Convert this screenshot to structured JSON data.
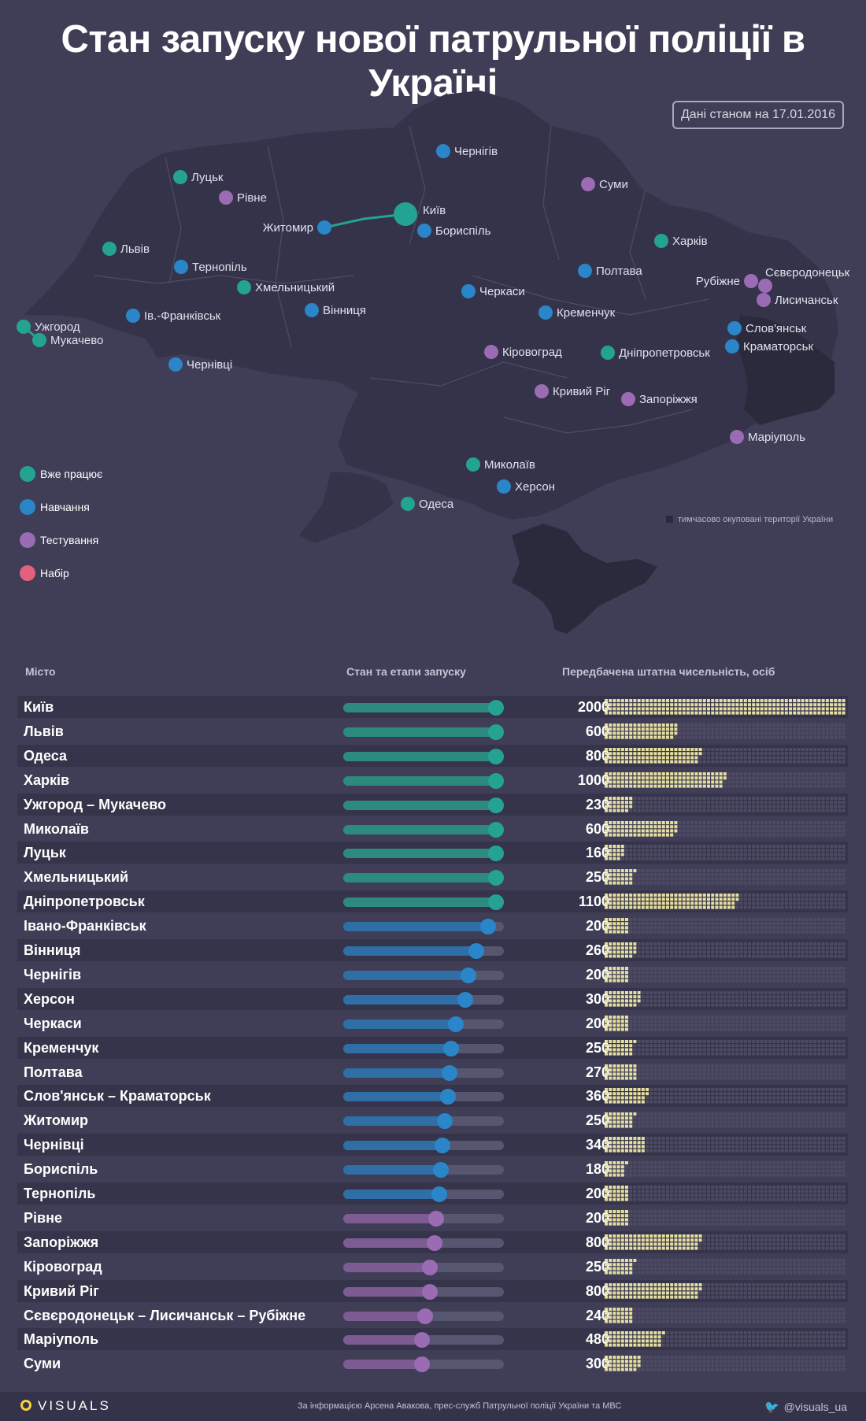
{
  "title": "Стан запуску нової патрульної поліції в Україні",
  "date_note": "Дані станом на 17.01.2016",
  "occupied_note": "тимчасово окуповані території України",
  "colors": {
    "works": "#24a392",
    "training": "#2a86c9",
    "testing": "#9b6bb3",
    "recruit": "#e3607f",
    "dot_on": "#e6dfa2",
    "dot_off": "#4c4b63"
  },
  "legend": [
    {
      "label": "Вже працює",
      "status": "works"
    },
    {
      "label": "Навчання",
      "status": "training"
    },
    {
      "label": "Тестування",
      "status": "testing"
    },
    {
      "label": "Набір",
      "status": "recruit"
    }
  ],
  "map_cities": [
    {
      "name": "Київ",
      "status": "works",
      "big": true
    },
    {
      "name": "Житомир",
      "status": "training"
    },
    {
      "name": "Бориспіль",
      "status": "training"
    },
    {
      "name": "Чернігів",
      "status": "training"
    },
    {
      "name": "Суми",
      "status": "testing"
    },
    {
      "name": "Харків",
      "status": "works"
    },
    {
      "name": "Луцьк",
      "status": "works"
    },
    {
      "name": "Рівне",
      "status": "testing"
    },
    {
      "name": "Львів",
      "status": "works"
    },
    {
      "name": "Тернопіль",
      "status": "training"
    },
    {
      "name": "Хмельницький",
      "status": "works"
    },
    {
      "name": "Ів.-Франківськ",
      "status": "training"
    },
    {
      "name": "Вінниця",
      "status": "training"
    },
    {
      "name": "Ужгород",
      "status": "works"
    },
    {
      "name": "Мукачево",
      "status": "works"
    },
    {
      "name": "Чернівці",
      "status": "training"
    },
    {
      "name": "Черкаси",
      "status": "training"
    },
    {
      "name": "Полтава",
      "status": "training"
    },
    {
      "name": "Кременчук",
      "status": "training"
    },
    {
      "name": "Кіровоград",
      "status": "testing"
    },
    {
      "name": "Дніпропетровськ",
      "status": "works"
    },
    {
      "name": "Кривий Ріг",
      "status": "testing"
    },
    {
      "name": "Запоріжжя",
      "status": "testing"
    },
    {
      "name": "Рубіжне",
      "status": "testing"
    },
    {
      "name": "Сєвєродонецьк",
      "status": "testing"
    },
    {
      "name": "Лисичанськ",
      "status": "testing"
    },
    {
      "name": "Слов'янськ",
      "status": "training"
    },
    {
      "name": "Краматорськ",
      "status": "training"
    },
    {
      "name": "Маріуполь",
      "status": "testing"
    },
    {
      "name": "Миколаїв",
      "status": "works"
    },
    {
      "name": "Херсон",
      "status": "training"
    },
    {
      "name": "Одеса",
      "status": "works"
    }
  ],
  "table_headers": {
    "city": "Місто",
    "progress": "Стан та етапи запуску",
    "staff": "Передбачена штатна чисельність, осіб"
  },
  "chart_data": {
    "type": "table",
    "progress_unit": "fraction of launch process completed (0-1)",
    "staff_max": 2000,
    "rows": [
      {
        "city": "Київ",
        "status": "works",
        "progress": 1.0,
        "staff": 2000
      },
      {
        "city": "Львів",
        "status": "works",
        "progress": 1.0,
        "staff": 600
      },
      {
        "city": "Одеса",
        "status": "works",
        "progress": 1.0,
        "staff": 800
      },
      {
        "city": "Харків",
        "status": "works",
        "progress": 1.0,
        "staff": 1000
      },
      {
        "city": "Ужгород – Мукачево",
        "status": "works",
        "progress": 1.0,
        "staff": 230
      },
      {
        "city": "Миколаїв",
        "status": "works",
        "progress": 1.0,
        "staff": 600
      },
      {
        "city": "Луцьк",
        "status": "works",
        "progress": 1.0,
        "staff": 160
      },
      {
        "city": "Хмельницький",
        "status": "works",
        "progress": 1.0,
        "staff": 250
      },
      {
        "city": "Дніпропетровськ",
        "status": "works",
        "progress": 1.0,
        "staff": 1100
      },
      {
        "city": "Івано-Франківськ",
        "status": "training",
        "progress": 0.9,
        "staff": 200
      },
      {
        "city": "Вінниця",
        "status": "training",
        "progress": 0.83,
        "staff": 260
      },
      {
        "city": "Чернігів",
        "status": "training",
        "progress": 0.78,
        "staff": 200
      },
      {
        "city": "Херсон",
        "status": "training",
        "progress": 0.76,
        "staff": 300
      },
      {
        "city": "Черкаси",
        "status": "training",
        "progress": 0.7,
        "staff": 200
      },
      {
        "city": "Кременчук",
        "status": "training",
        "progress": 0.67,
        "staff": 250
      },
      {
        "city": "Полтава",
        "status": "training",
        "progress": 0.66,
        "staff": 270
      },
      {
        "city": "Слов'янськ – Краматорськ",
        "status": "training",
        "progress": 0.65,
        "staff": 360
      },
      {
        "city": "Житомир",
        "status": "training",
        "progress": 0.63,
        "staff": 250
      },
      {
        "city": "Чернівці",
        "status": "training",
        "progress": 0.62,
        "staff": 340
      },
      {
        "city": "Бориспіль",
        "status": "training",
        "progress": 0.61,
        "staff": 180
      },
      {
        "city": "Тернопіль",
        "status": "training",
        "progress": 0.6,
        "staff": 200
      },
      {
        "city": "Рівне",
        "status": "testing",
        "progress": 0.58,
        "staff": 200
      },
      {
        "city": "Запоріжжя",
        "status": "testing",
        "progress": 0.57,
        "staff": 800
      },
      {
        "city": "Кіровоград",
        "status": "testing",
        "progress": 0.54,
        "staff": 250
      },
      {
        "city": "Кривий Ріг",
        "status": "testing",
        "progress": 0.54,
        "staff": 800
      },
      {
        "city": "Сєвєродонецьк – Лисичанськ – Рубіжне",
        "status": "testing",
        "progress": 0.51,
        "staff": 240
      },
      {
        "city": "Маріуполь",
        "status": "testing",
        "progress": 0.49,
        "staff": 480
      },
      {
        "city": "Суми",
        "status": "testing",
        "progress": 0.49,
        "staff": 300
      }
    ]
  },
  "footer": {
    "logo": "VISUALS",
    "source": "За інформацією Арсена Авакова, прес-служб Патрульної поліції України та МВС",
    "twitter": "@visuals_ua"
  }
}
